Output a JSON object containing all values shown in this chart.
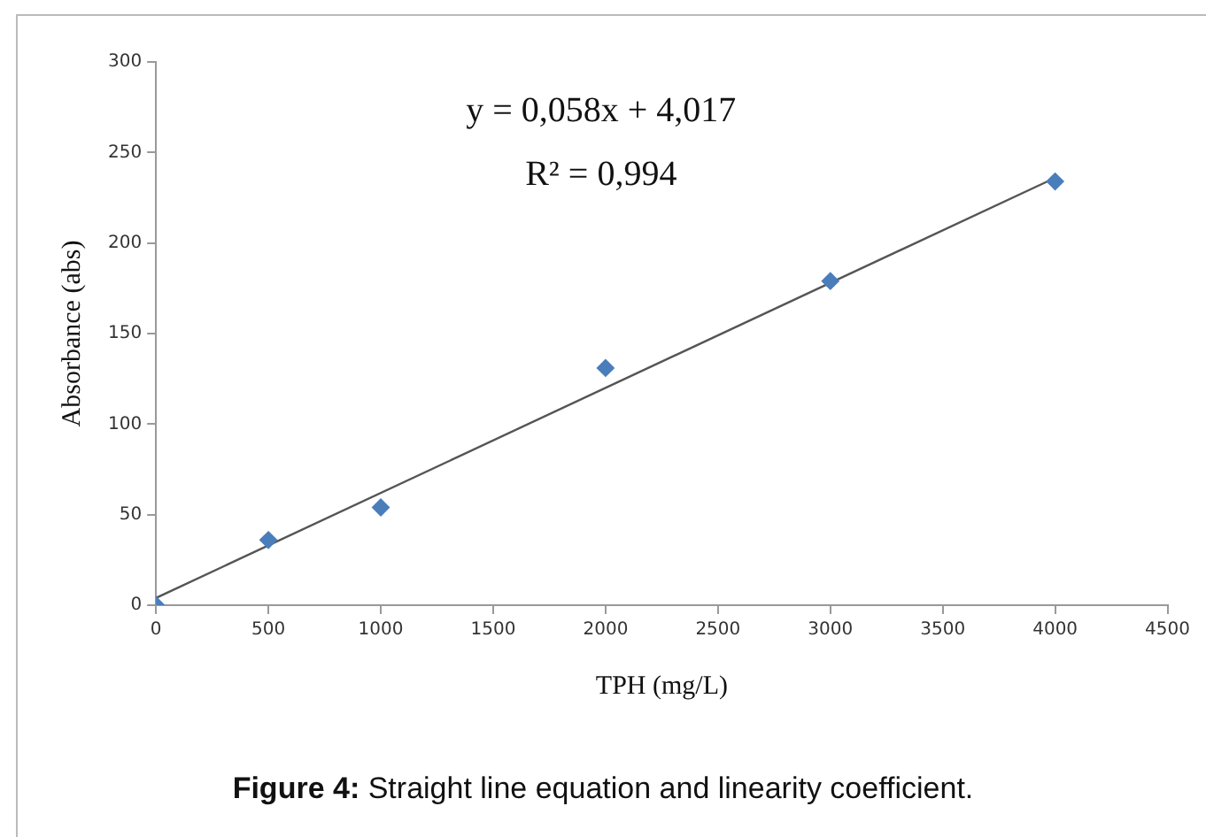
{
  "chart_data": {
    "type": "scatter",
    "xlabel": "TPH (mg/L)",
    "ylabel": "Absorbance (abs)",
    "x": [
      0,
      500,
      1000,
      2000,
      3000,
      4000
    ],
    "series": [
      {
        "color": "#4a7ebb",
        "marker": "diamond",
        "values": [
          0,
          36,
          54,
          131,
          179,
          234
        ]
      },
      {
        "type": "line",
        "color": "#555555",
        "marker": "none",
        "x": [
          0,
          4000
        ],
        "values": [
          4,
          236
        ]
      }
    ],
    "xlim": [
      0,
      4500
    ],
    "xticks": [
      0,
      500,
      1000,
      1500,
      2000,
      2500,
      3000,
      3500,
      4000,
      4500
    ],
    "ylim": [
      0,
      300
    ],
    "yticks": [
      0,
      50,
      100,
      150,
      200,
      250,
      300
    ],
    "grid": false,
    "legend": false,
    "annotations": [
      "y = 0,058x + 4,017",
      "R² = 0,994",
      "Figure 4: Straight line equation and linearity coefficient."
    ]
  }
}
